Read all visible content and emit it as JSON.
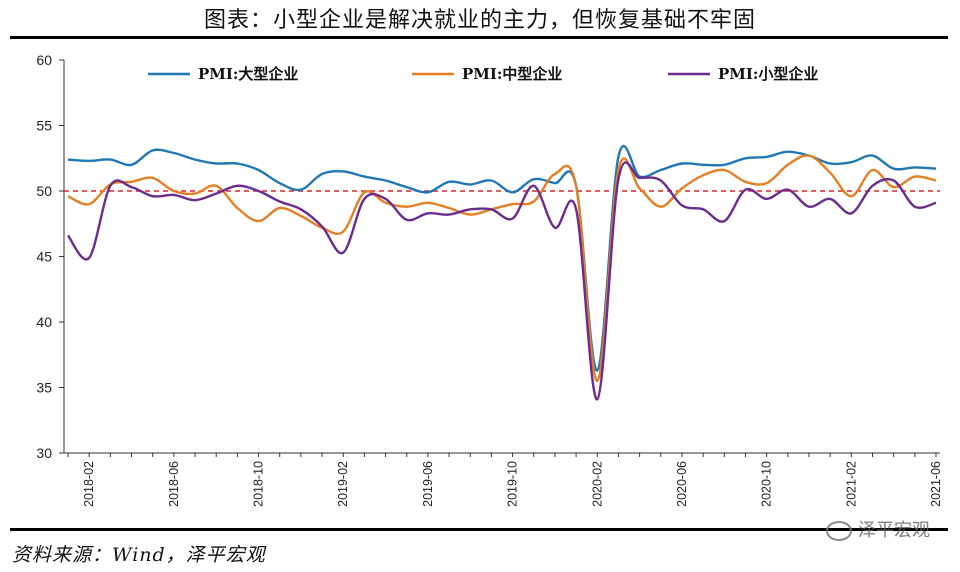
{
  "title": "图表：小型企业是解决就业的主力，但恢复基础不牢固",
  "source": "资料来源：Wind，泽平宏观",
  "watermark": "泽平宏观",
  "chart_data": {
    "type": "line",
    "ylim": [
      30,
      60
    ],
    "yticks": [
      30,
      35,
      40,
      45,
      50,
      55,
      60
    ],
    "x_range": [
      "2018-01",
      "2021-06"
    ],
    "xtick_labels": [
      "2018-02",
      "2018-06",
      "2018-10",
      "2019-02",
      "2019-06",
      "2019-10",
      "2020-02",
      "2020-06",
      "2020-10",
      "2021-02",
      "2021-06"
    ],
    "reference_line": {
      "value": 50,
      "color": "#d62728",
      "style": "dashed"
    },
    "legend_position": "top",
    "x": [
      "2018-01",
      "2018-02",
      "2018-03",
      "2018-04",
      "2018-05",
      "2018-06",
      "2018-07",
      "2018-08",
      "2018-09",
      "2018-10",
      "2018-11",
      "2018-12",
      "2019-01",
      "2019-02",
      "2019-03",
      "2019-04",
      "2019-05",
      "2019-06",
      "2019-07",
      "2019-08",
      "2019-09",
      "2019-10",
      "2019-11",
      "2019-12",
      "2020-01",
      "2020-02",
      "2020-03",
      "2020-04",
      "2020-05",
      "2020-06",
      "2020-07",
      "2020-08",
      "2020-09",
      "2020-10",
      "2020-11",
      "2020-12",
      "2021-01",
      "2021-02",
      "2021-03",
      "2021-04",
      "2021-05",
      "2021-06"
    ],
    "series": [
      {
        "name": "PMI:大型企业",
        "color": "#1f77b4",
        "values": [
          52.4,
          52.3,
          52.4,
          52.0,
          53.1,
          52.9,
          52.4,
          52.1,
          52.1,
          51.6,
          50.6,
          50.1,
          51.3,
          51.5,
          51.1,
          50.8,
          50.3,
          49.9,
          50.7,
          50.5,
          50.8,
          49.9,
          50.9,
          50.6,
          50.4,
          36.3,
          52.6,
          51.1,
          51.6,
          52.1,
          52.0,
          52.0,
          52.5,
          52.6,
          53.0,
          52.7,
          52.1,
          52.2,
          52.7,
          51.7,
          51.8,
          51.7
        ]
      },
      {
        "name": "PMI:中型企业",
        "color": "#e67e22",
        "values": [
          49.6,
          49.0,
          50.5,
          50.7,
          51.0,
          50.0,
          49.8,
          50.4,
          48.7,
          47.7,
          48.7,
          48.1,
          47.2,
          46.9,
          49.9,
          49.1,
          48.8,
          49.1,
          48.7,
          48.2,
          48.6,
          49.0,
          49.2,
          51.3,
          50.4,
          35.5,
          51.6,
          50.2,
          48.8,
          50.2,
          51.2,
          51.6,
          50.7,
          50.6,
          52.0,
          52.7,
          51.4,
          49.6,
          51.6,
          50.3,
          51.1,
          50.8
        ]
      },
      {
        "name": "PMI:小型企业",
        "color": "#6a2c8e",
        "values": [
          46.6,
          44.9,
          50.4,
          50.3,
          49.6,
          49.7,
          49.3,
          49.8,
          50.4,
          50.0,
          49.2,
          48.6,
          47.3,
          45.3,
          49.4,
          49.4,
          47.8,
          48.3,
          48.2,
          48.6,
          48.6,
          47.9,
          50.4,
          47.2,
          48.6,
          34.1,
          50.9,
          51.0,
          50.8,
          48.9,
          48.6,
          47.7,
          50.1,
          49.4,
          50.1,
          48.8,
          49.4,
          48.3,
          50.4,
          50.8,
          48.8,
          49.1
        ]
      }
    ]
  }
}
